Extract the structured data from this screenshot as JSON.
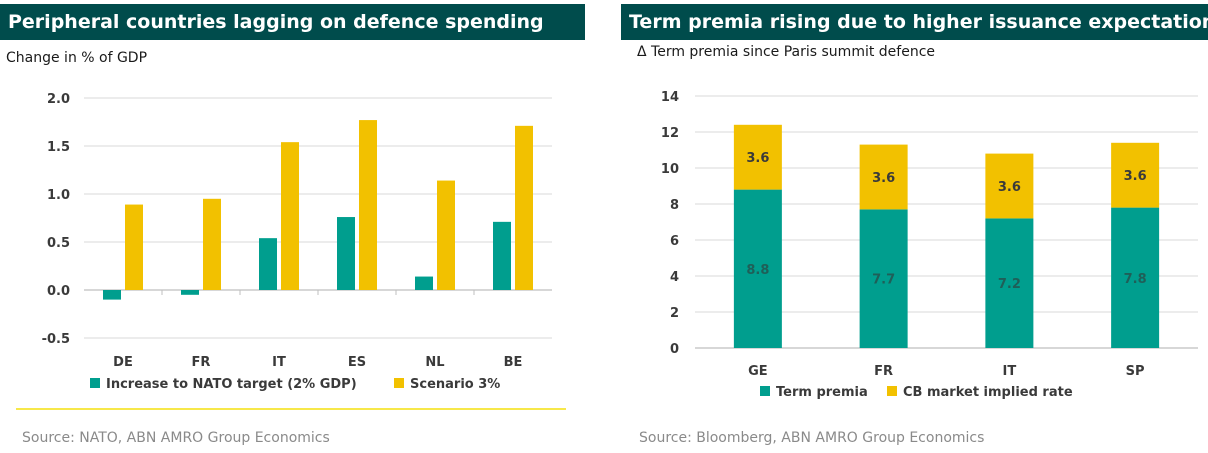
{
  "colors": {
    "teal": "#009e8e",
    "gold": "#f2c100",
    "header": "#004c4c",
    "grid": "#d9d9d9"
  },
  "left": {
    "title": "Peripheral countries lagging on defence spending",
    "subtitle": "Change in % of GDP",
    "source": "Source: NATO, ABN AMRO Group Economics",
    "chart_data": {
      "type": "bar",
      "categories": [
        "DE",
        "FR",
        "IT",
        "ES",
        "NL",
        "BE"
      ],
      "series": [
        {
          "name": "Increase to NATO target (2% GDP)",
          "values": [
            -0.1,
            -0.05,
            0.54,
            0.76,
            0.14,
            0.71
          ]
        },
        {
          "name": "Scenario 3%",
          "values": [
            0.89,
            0.95,
            1.54,
            1.77,
            1.14,
            1.71
          ]
        }
      ],
      "ylim": [
        -0.5,
        2.0
      ],
      "yticks": [
        "2.0",
        "1.5",
        "1.0",
        "0.5",
        "0.0",
        "-0.5"
      ],
      "ytick_values": [
        2.0,
        1.5,
        1.0,
        0.5,
        0.0,
        -0.5
      ],
      "grid": true,
      "legend": "bottom"
    }
  },
  "right": {
    "title": "Term premia rising due to higher issuance expectations",
    "subtitle": "Δ Term premia since Paris summit defence",
    "source": "Source:  Bloomberg, ABN AMRO Group Economics",
    "chart_data": {
      "type": "bar",
      "stacked": true,
      "categories": [
        "GE",
        "FR",
        "IT",
        "SP"
      ],
      "series": [
        {
          "name": "Term premia",
          "values": [
            8.8,
            7.7,
            7.2,
            7.8
          ],
          "labels": [
            "8.8",
            "7.7",
            "7.2",
            "7.8"
          ]
        },
        {
          "name": "CB market implied rate",
          "values": [
            3.6,
            3.6,
            3.6,
            3.6
          ],
          "labels": [
            "3.6",
            "3.6",
            "3.6",
            "3.6"
          ]
        }
      ],
      "ylim": [
        0,
        14
      ],
      "yticks": [
        "14",
        "12",
        "10",
        "8",
        "6",
        "4",
        "2",
        "0"
      ],
      "ytick_values": [
        14,
        12,
        10,
        8,
        6,
        4,
        2,
        0
      ],
      "grid": true,
      "legend": "bottom"
    }
  }
}
